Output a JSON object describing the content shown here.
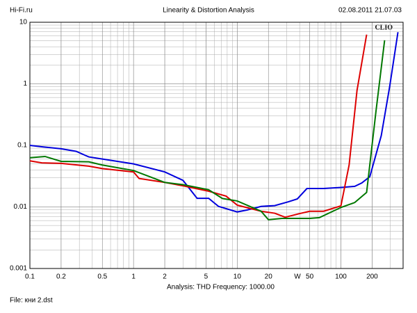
{
  "chart_data": {
    "type": "line",
    "header_left": "Hi-Fi.ru",
    "title": "Linearity & Distortion Analysis",
    "header_right": "02.08.2011 21.07.03",
    "brand": "CLIO",
    "x_unit": "W",
    "analysis_label": "Analysis: THD   Frequency: 1000.00",
    "file_label": "File: кни 2.dst",
    "xscale": "log",
    "yscale": "log",
    "xlim": [
      0.1,
      398
    ],
    "ylim": [
      0.001,
      10
    ],
    "xticks": [
      0.1,
      0.2,
      0.5,
      1,
      2,
      5,
      10,
      20,
      50,
      100,
      200
    ],
    "yticks": [
      10,
      1,
      0.1,
      0.01,
      0.001
    ],
    "grid": true,
    "minor_grid": true,
    "series": [
      {
        "color": "#0000dd",
        "x": [
          0.1,
          0.13,
          0.2,
          0.28,
          0.37,
          0.5,
          1,
          2,
          3,
          4.1,
          5.3,
          6.6,
          10,
          12.4,
          17,
          23,
          31,
          38,
          47,
          68,
          100,
          136,
          159,
          190,
          245,
          295,
          355
        ],
        "values": [
          0.1,
          0.095,
          0.088,
          0.08,
          0.065,
          0.06,
          0.05,
          0.037,
          0.027,
          0.0138,
          0.0138,
          0.0102,
          0.0083,
          0.0089,
          0.0102,
          0.0105,
          0.0121,
          0.0135,
          0.0199,
          0.0199,
          0.0207,
          0.0216,
          0.0245,
          0.031,
          0.144,
          0.89,
          6.9
        ]
      },
      {
        "color": "#dd0000",
        "x": [
          0.1,
          0.13,
          0.2,
          0.37,
          0.5,
          1,
          1.13,
          2,
          3,
          5.3,
          7.8,
          10,
          17,
          23,
          29,
          40,
          50,
          68,
          100,
          120,
          143,
          177
        ],
        "values": [
          0.056,
          0.052,
          0.051,
          0.046,
          0.042,
          0.037,
          0.029,
          0.025,
          0.022,
          0.018,
          0.015,
          0.0107,
          0.0085,
          0.0079,
          0.0068,
          0.0078,
          0.0085,
          0.0085,
          0.0104,
          0.048,
          0.78,
          6.3
        ]
      },
      {
        "color": "#007700",
        "x": [
          0.1,
          0.14,
          0.2,
          0.37,
          0.5,
          1,
          2,
          3,
          5.3,
          7.2,
          10,
          17,
          20,
          27,
          50,
          62,
          100,
          136,
          177,
          218,
          264
        ],
        "values": [
          0.063,
          0.066,
          0.055,
          0.054,
          0.048,
          0.039,
          0.025,
          0.023,
          0.019,
          0.0137,
          0.0125,
          0.0085,
          0.0062,
          0.0065,
          0.0065,
          0.0067,
          0.0098,
          0.0118,
          0.0172,
          0.36,
          5.1
        ]
      }
    ]
  }
}
